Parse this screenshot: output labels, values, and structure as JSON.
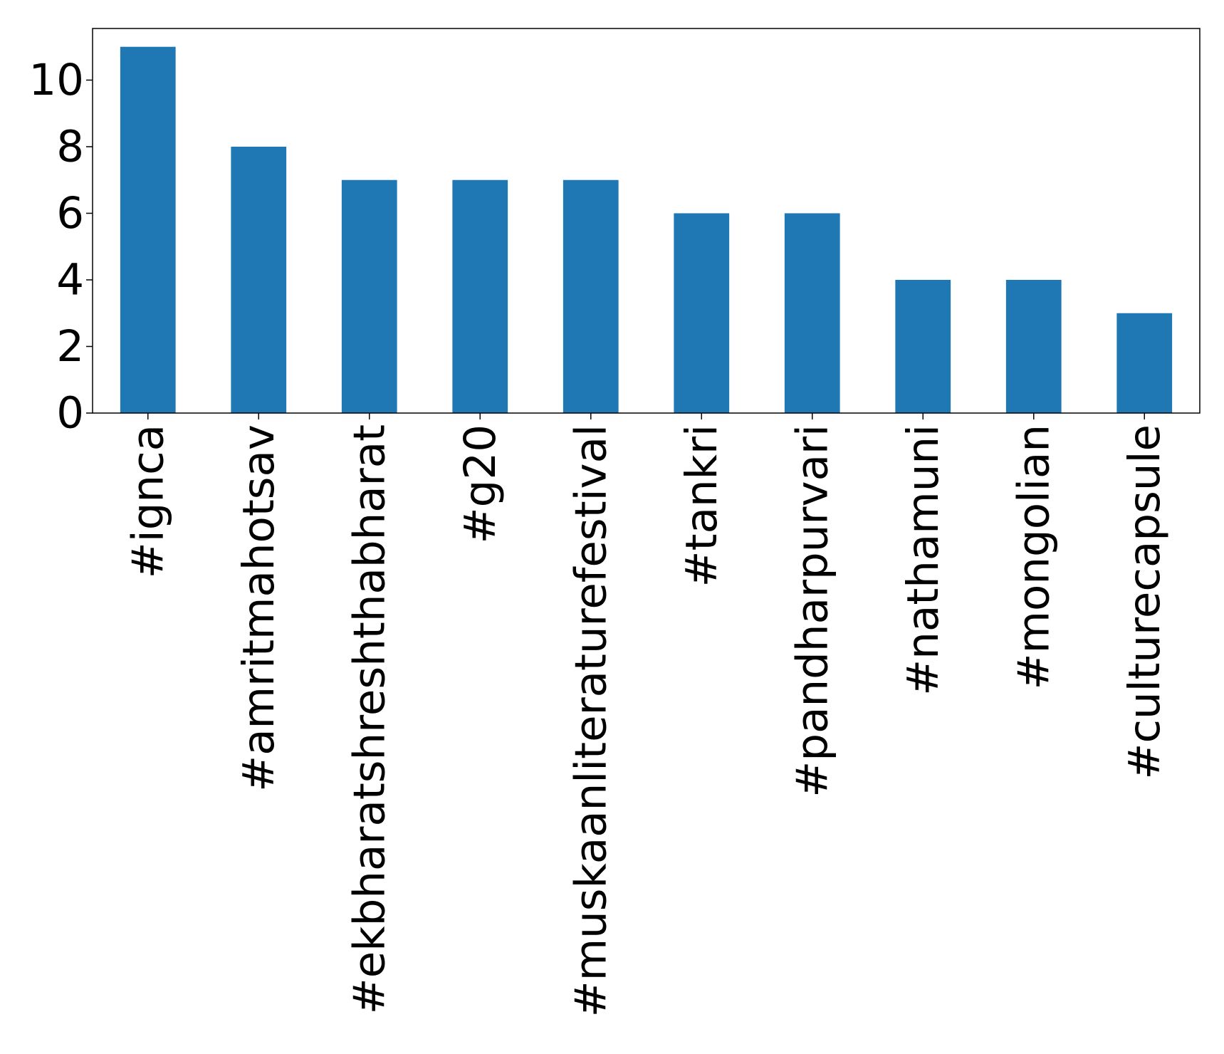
{
  "chart_data": {
    "type": "bar",
    "title": "",
    "xlabel": "",
    "ylabel": "",
    "categories": [
      "#ignca",
      "#amritmahotsav",
      "#ekbharatshreshthabharat",
      "#g20",
      "#muskaanliteraturefestival",
      "#tankri",
      "#pandharpurvari",
      "#nathamuni",
      "#mongolian",
      "#culturecapsule"
    ],
    "values": [
      11,
      8,
      7,
      7,
      7,
      6,
      6,
      4,
      4,
      3
    ],
    "ylim": [
      0,
      11.55
    ],
    "yticks": [
      0,
      2,
      4,
      6,
      8,
      10
    ],
    "ytick_labels": [
      "0",
      "2",
      "4",
      "6",
      "8",
      "10"
    ],
    "grid": false,
    "legend": false,
    "bar_color": "#1f77b4"
  }
}
